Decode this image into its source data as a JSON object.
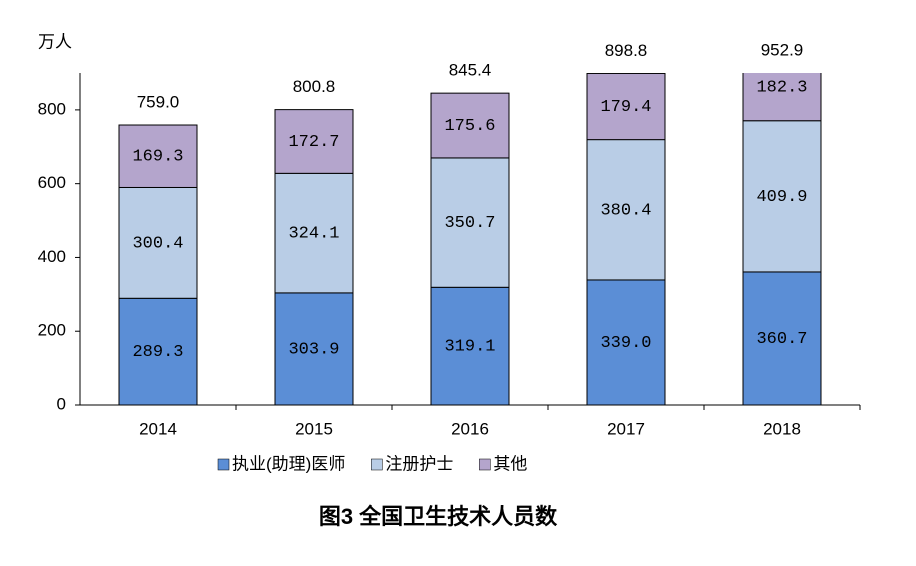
{
  "chart_data": {
    "type": "stacked-bar",
    "title": "图3 全国卫生技术人员数",
    "y_label": "万人",
    "categories": [
      "2014",
      "2015",
      "2016",
      "2017",
      "2018"
    ],
    "series": [
      {
        "name": "执业(助理)医师",
        "color": "#5b8ed6",
        "label_color": "#ffffff",
        "values": [
          289.3,
          303.9,
          319.1,
          339,
          360.7
        ],
        "value_labels": [
          "289.3",
          "303.9",
          "319.1",
          "339.0",
          "360.7"
        ]
      },
      {
        "name": "注册护士",
        "color": "#b9cde6",
        "label_color": "#1f3864",
        "values": [
          300.4,
          324.1,
          350.7,
          380.4,
          409.9
        ]
      },
      {
        "name": "其他",
        "color": "#b4a5cc",
        "label_color": "#ffffff",
        "values": [
          169.3,
          172.7,
          175.6,
          179.4,
          182.3
        ]
      }
    ],
    "totals": {
      "values": [
        759,
        800.8,
        845.4,
        898.8,
        952.9
      ],
      "value_labels": [
        "759.0",
        "800.8",
        "845.4",
        "898.8",
        "952.9"
      ]
    },
    "ylim": [
      0,
      900
    ],
    "yticks": [
      0,
      200,
      400,
      600,
      800
    ],
    "grid": false
  }
}
